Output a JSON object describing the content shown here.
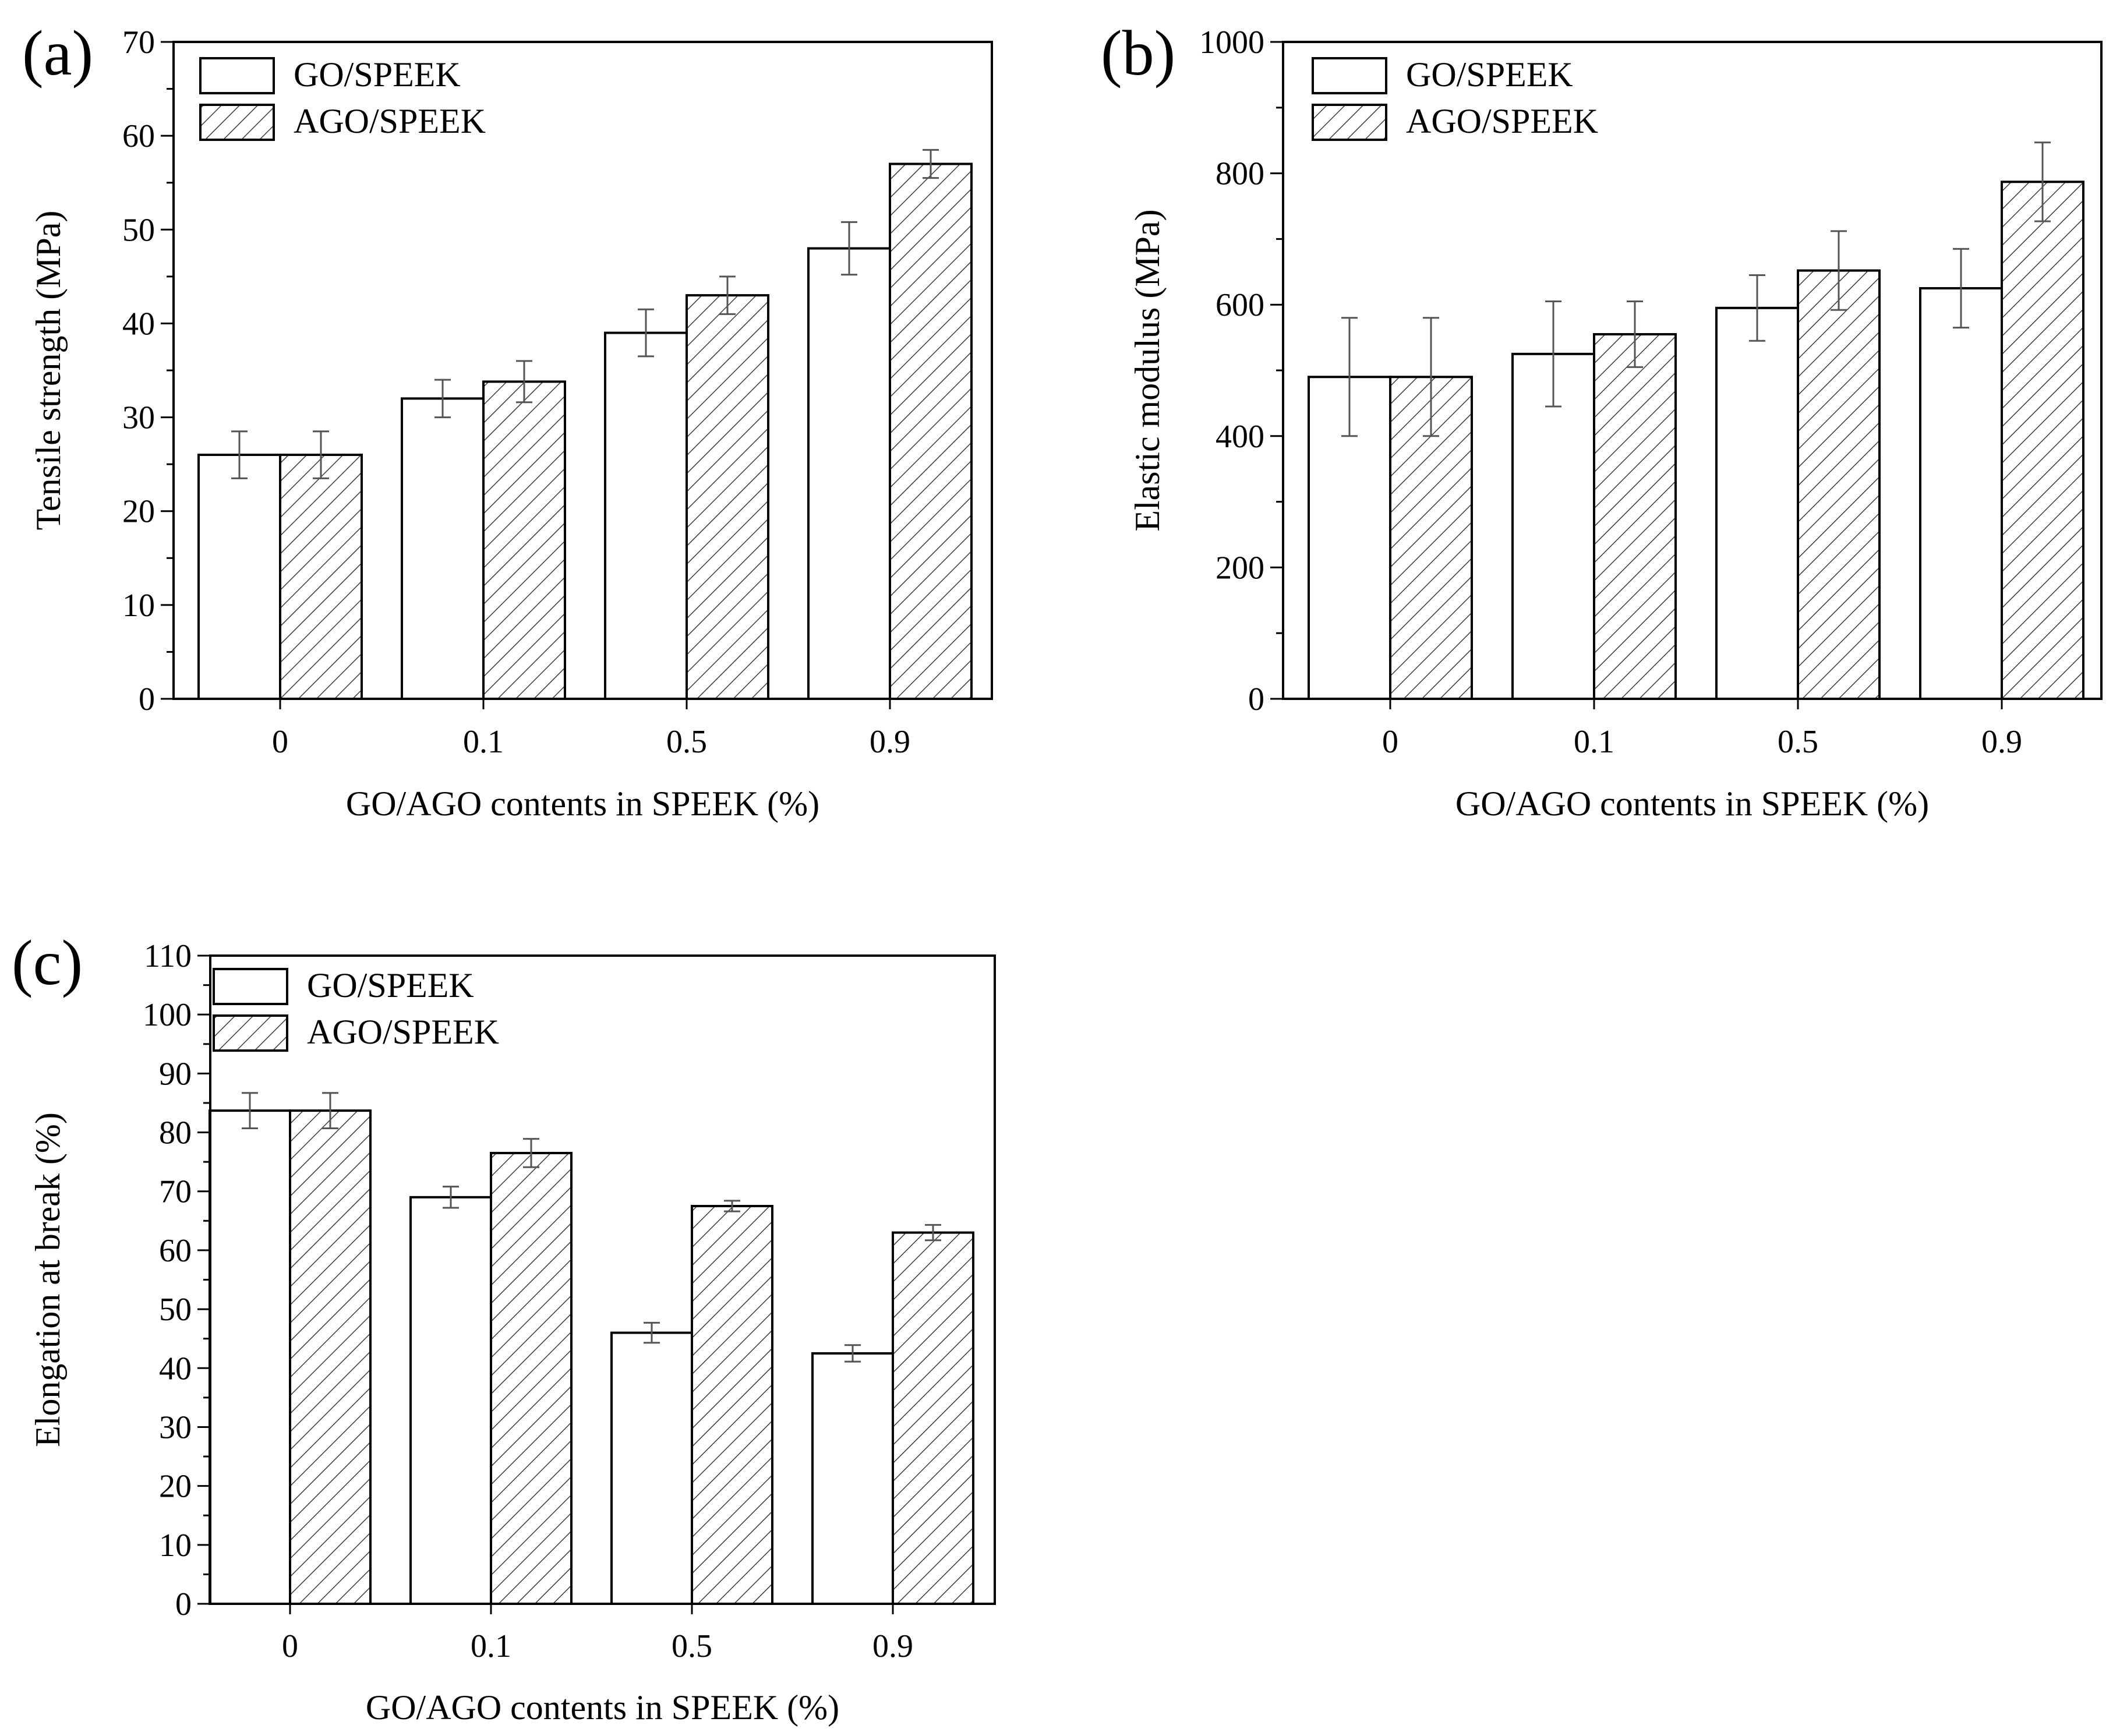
{
  "figure": {
    "colors": {
      "ink": "#000000",
      "fill": "#ffffff",
      "error_bar": "#555555"
    },
    "legend_fill_icons": [
      "plain-rectangle",
      "hatched-rectangle"
    ]
  },
  "chart_data": [
    {
      "type": "bar",
      "panel": "(a)",
      "categories": [
        "0",
        "0.1",
        "0.5",
        "0.9"
      ],
      "series": [
        {
          "name": "GO/SPEEK",
          "pattern": "plain",
          "values": [
            26,
            32,
            39,
            48
          ],
          "errors": [
            2.5,
            2.0,
            2.5,
            2.8
          ]
        },
        {
          "name": "AGO/SPEEK",
          "pattern": "hatched",
          "values": [
            26,
            33.8,
            43,
            57
          ],
          "errors": [
            2.5,
            2.2,
            2.0,
            1.5
          ]
        }
      ],
      "xlabel": "GO/AGO contents in SPEEK (%)",
      "ylabel": "Tensile strength (MPa)",
      "ylim": [
        0,
        70
      ],
      "yticks": [
        0,
        10,
        20,
        30,
        40,
        50,
        60,
        70
      ],
      "minor_step": 5,
      "legend_position": "top-left",
      "grid": false
    },
    {
      "type": "bar",
      "panel": "(b)",
      "categories": [
        "0",
        "0.1",
        "0.5",
        "0.9"
      ],
      "series": [
        {
          "name": "GO/SPEEK",
          "pattern": "plain",
          "values": [
            490,
            525,
            595,
            625
          ],
          "errors": [
            90,
            80,
            50,
            60
          ]
        },
        {
          "name": "AGO/SPEEK",
          "pattern": "hatched",
          "values": [
            490,
            555,
            652,
            787
          ],
          "errors": [
            90,
            50,
            60,
            60
          ]
        }
      ],
      "xlabel": "GO/AGO contents in SPEEK (%)",
      "ylabel": "Elastic modulus (MPa)",
      "ylim": [
        0,
        1000
      ],
      "yticks": [
        0,
        200,
        400,
        600,
        800,
        1000
      ],
      "minor_step": 100,
      "legend_position": "top-left",
      "grid": false
    },
    {
      "type": "bar",
      "panel": "(c)",
      "categories": [
        "0",
        "0.1",
        "0.5",
        "0.9"
      ],
      "series": [
        {
          "name": "GO/SPEEK",
          "pattern": "plain",
          "values": [
            83.7,
            69,
            46,
            42.5
          ],
          "errors": [
            3.0,
            1.8,
            1.7,
            1.4
          ]
        },
        {
          "name": "AGO/SPEEK",
          "pattern": "hatched",
          "values": [
            83.7,
            76.5,
            67.5,
            63
          ],
          "errors": [
            3.0,
            2.4,
            0.9,
            1.3
          ]
        }
      ],
      "xlabel": "GO/AGO contents in SPEEK (%)",
      "ylabel": "Elongation at break (%)",
      "ylim": [
        0,
        110
      ],
      "yticks": [
        0,
        10,
        20,
        30,
        40,
        50,
        60,
        70,
        80,
        90,
        100,
        110
      ],
      "minor_step": 5,
      "legend_position": "top-left",
      "grid": false
    }
  ]
}
